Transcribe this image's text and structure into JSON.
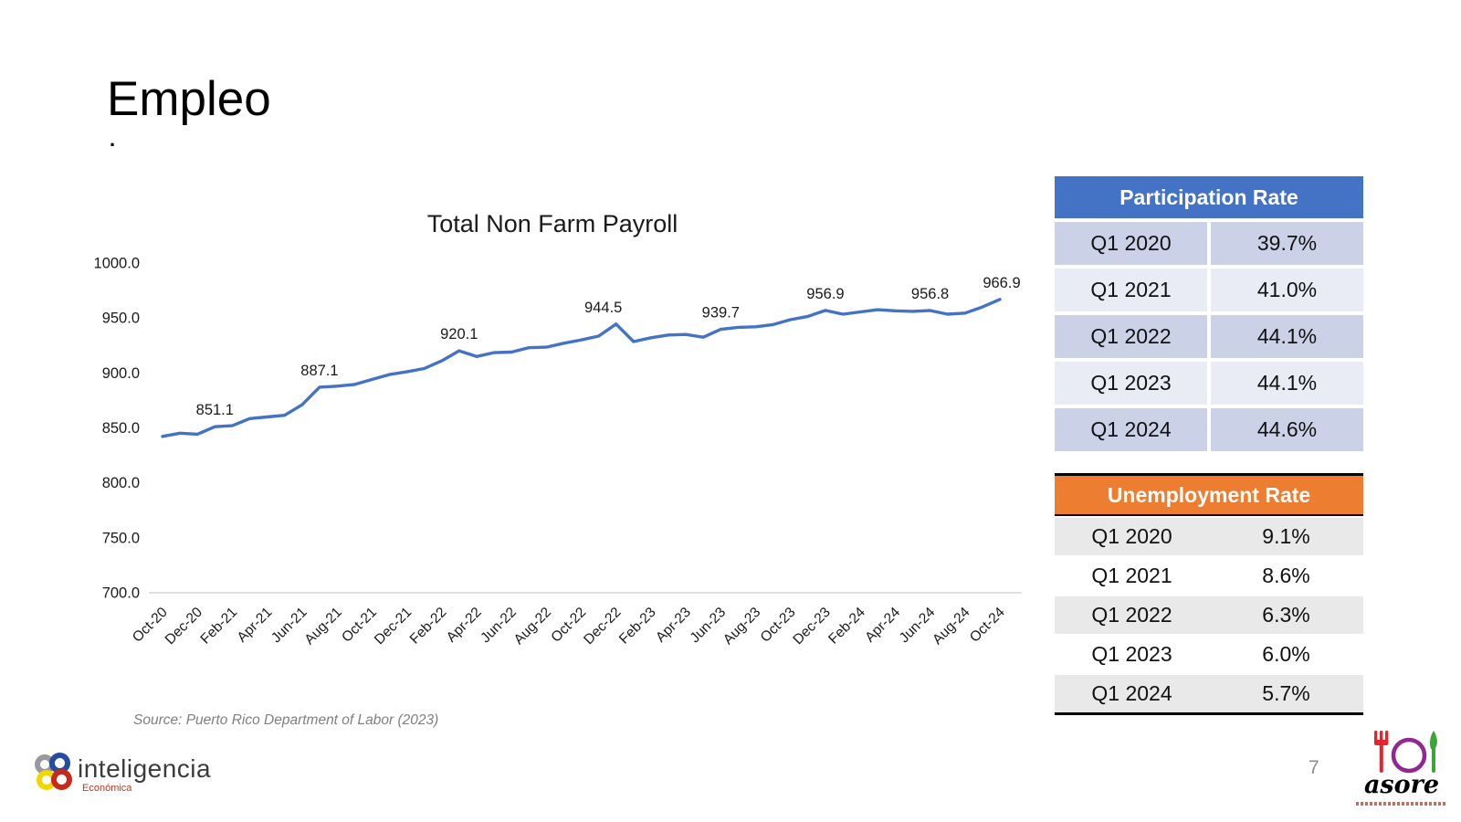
{
  "slide": {
    "title": "Empleo",
    "title_dot": ".",
    "source_note": "Source: Puerto Rico Department of Labor (2023)",
    "page_number": "7"
  },
  "chart_data": {
    "type": "line",
    "title": "Total Non Farm Payroll",
    "line_color": "#4472C4",
    "label_color": "#1a1a1a",
    "axis_color": "#d6d6d6",
    "grid": false,
    "legend_position": "none",
    "ylim": [
      700,
      1000
    ],
    "ytick_step": 50,
    "x": [
      "Oct-20",
      "Nov-20",
      "Dec-20",
      "Jan-21",
      "Feb-21",
      "Mar-21",
      "Apr-21",
      "May-21",
      "Jun-21",
      "Jul-21",
      "Aug-21",
      "Sep-21",
      "Oct-21",
      "Nov-21",
      "Dec-21",
      "Jan-22",
      "Feb-22",
      "Mar-22",
      "Apr-22",
      "May-22",
      "Jun-22",
      "Jul-22",
      "Aug-22",
      "Sep-22",
      "Oct-22",
      "Nov-22",
      "Dec-22",
      "Jan-23",
      "Feb-23",
      "Mar-23",
      "Apr-23",
      "May-23",
      "Jun-23",
      "Jul-23",
      "Aug-23",
      "Sep-23",
      "Oct-23",
      "Nov-23",
      "Dec-23",
      "Jan-24",
      "Feb-24",
      "Mar-24",
      "Apr-24",
      "May-24",
      "Jun-24",
      "Jul-24",
      "Aug-24",
      "Sep-24",
      "Oct-24"
    ],
    "values": [
      842.3,
      845.2,
      844.3,
      851.1,
      852.0,
      858.5,
      860.0,
      861.5,
      871.0,
      887.1,
      888.0,
      889.5,
      894.0,
      898.5,
      901.0,
      904.0,
      911.0,
      920.1,
      915.0,
      918.5,
      919.0,
      923.0,
      923.5,
      927.0,
      930.0,
      933.5,
      944.5,
      928.5,
      932.0,
      934.5,
      935.0,
      932.5,
      939.7,
      941.5,
      942.0,
      944.0,
      948.5,
      951.5,
      956.9,
      953.5,
      955.5,
      957.5,
      956.5,
      956.0,
      956.8,
      953.5,
      954.5,
      960.0,
      966.9
    ],
    "x_ticks_shown": [
      "Oct-20",
      "Dec-20",
      "Feb-21",
      "Apr-21",
      "Jun-21",
      "Aug-21",
      "Oct-21",
      "Dec-21",
      "Feb-22",
      "Apr-22",
      "Jun-22",
      "Aug-22",
      "Oct-22",
      "Dec-22",
      "Feb-23",
      "Apr-23",
      "Jun-23",
      "Aug-23",
      "Oct-23",
      "Dec-23",
      "Feb-24",
      "Apr-24",
      "Jun-24",
      "Aug-24",
      "Oct-24"
    ],
    "data_labels": [
      {
        "month": "Jan-21",
        "value": 851.1
      },
      {
        "month": "Jul-21",
        "value": 887.1
      },
      {
        "month": "Mar-22",
        "value": 920.1
      },
      {
        "month": "Dec-22",
        "value": 944.5
      },
      {
        "month": "Jun-23",
        "value": 939.7
      },
      {
        "month": "Dec-23",
        "value": 956.9
      },
      {
        "month": "Jun-24",
        "value": 956.8
      },
      {
        "month": "Oct-24",
        "value": 966.9
      }
    ]
  },
  "participation_table": {
    "title": "Participation Rate",
    "header_color": "#4472C4",
    "row_colors": [
      "#CBD2E8",
      "#E9EBF5"
    ],
    "rows": [
      [
        "Q1 2020",
        "39.7%"
      ],
      [
        "Q1 2021",
        "41.0%"
      ],
      [
        "Q1 2022",
        "44.1%"
      ],
      [
        "Q1 2023",
        "44.1%"
      ],
      [
        "Q1 2024",
        "44.6%"
      ]
    ]
  },
  "unemployment_table": {
    "title": "Unemployment Rate",
    "header_color": "#ED7D31",
    "row_colors": [
      "#E9E9E9",
      "#FFFFFF"
    ],
    "rows": [
      [
        "Q1 2020",
        "9.1%"
      ],
      [
        "Q1 2021",
        "8.6%"
      ],
      [
        "Q1 2022",
        "6.3%"
      ],
      [
        "Q1 2023",
        "6.0%"
      ],
      [
        "Q1 2024",
        "5.7%"
      ]
    ]
  },
  "footer": {
    "logo_left": {
      "brand": "inteligencia",
      "subbrand": "Económica"
    },
    "logo_right": {
      "brand": "asore"
    }
  }
}
